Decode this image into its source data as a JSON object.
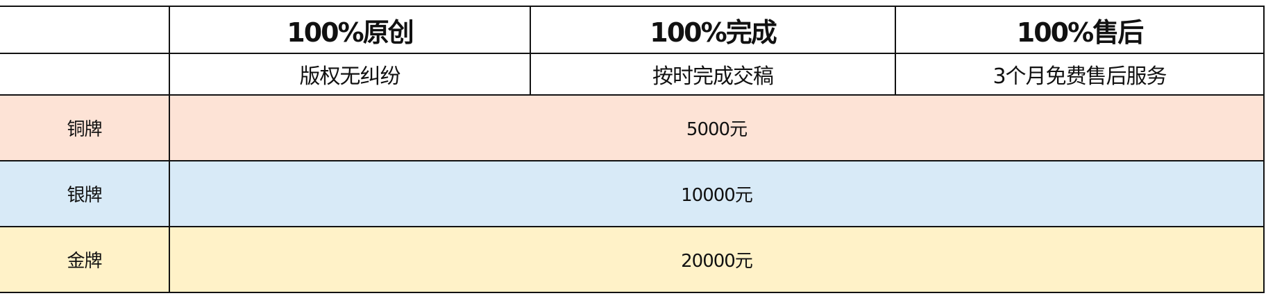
{
  "header": {
    "titles": [
      "100%原创",
      "100%完成",
      "100%售后"
    ],
    "subtitles": [
      "版权无纠纷",
      "按时完成交稿",
      "3个月免费售后服务"
    ]
  },
  "tiers": [
    {
      "name": "铜牌",
      "price": "5000元",
      "color": "#fde3d6"
    },
    {
      "name": "银牌",
      "price": "10000元",
      "color": "#d8eaf7"
    },
    {
      "name": "金牌",
      "price": "20000元",
      "color": "#fff2c8"
    }
  ]
}
